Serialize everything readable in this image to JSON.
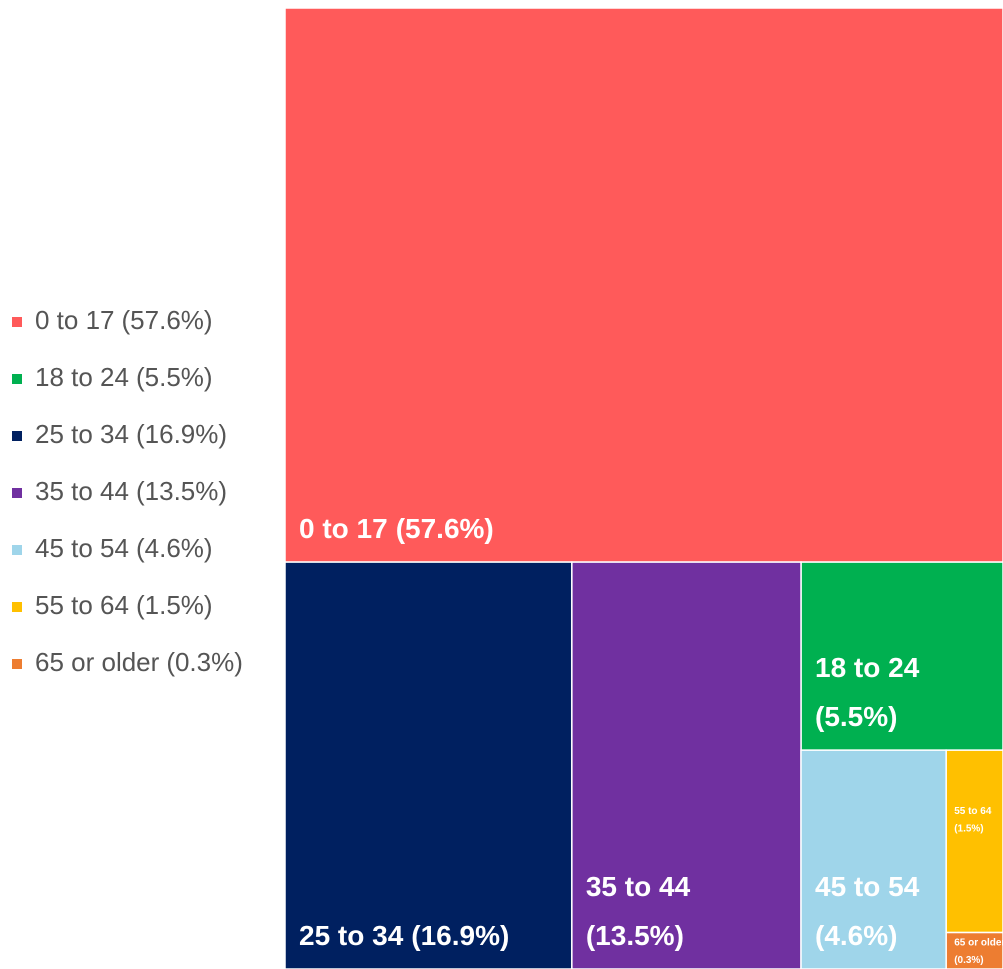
{
  "chart_data": {
    "type": "treemap",
    "categories": [
      "0 to 17",
      "18 to 24",
      "25 to 34",
      "35 to 44",
      "45 to 54",
      "55 to 64",
      "65 or older"
    ],
    "values": [
      57.6,
      5.5,
      16.9,
      13.5,
      4.6,
      1.5,
      0.3
    ],
    "value_labels": [
      "(57.6%)",
      "(5.5%)",
      "(16.9%)",
      "(13.5%)",
      "(4.6%)",
      "(1.5%)",
      "(0.3%)"
    ],
    "colors": [
      "#ff5a5a",
      "#00b050",
      "#002060",
      "#7030a0",
      "#9fd5ea",
      "#ffc000",
      "#ed7d31"
    ],
    "legend": "left"
  }
}
